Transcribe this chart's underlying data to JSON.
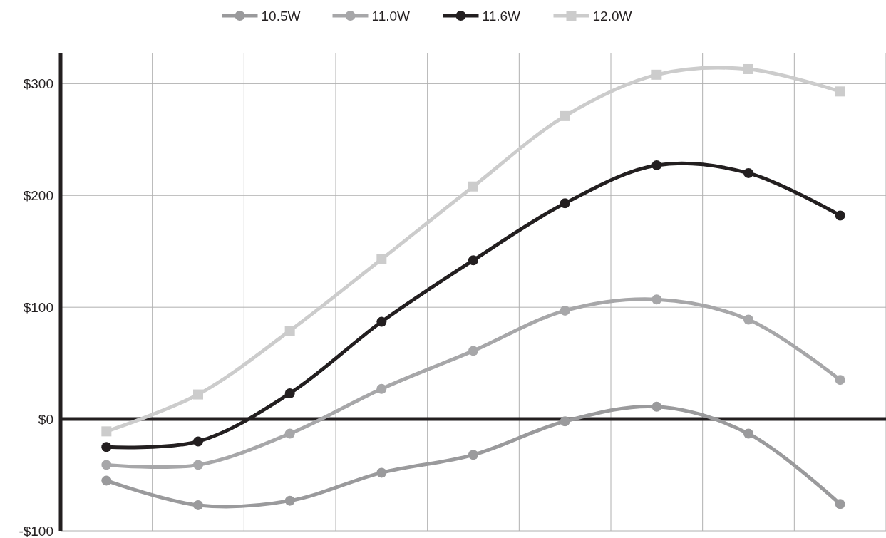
{
  "chart_data": {
    "type": "line",
    "categories": [
      null,
      null,
      null,
      null,
      null,
      null,
      null,
      null,
      null
    ],
    "series": [
      {
        "name": "10.5W",
        "color": "#9a9a9c",
        "marker": "circle",
        "values": [
          -55,
          -77,
          -73,
          -48,
          -32,
          -2,
          11,
          -13,
          -76
        ]
      },
      {
        "name": "11.0W",
        "color": "#a7a7a9",
        "marker": "circle",
        "values": [
          -41,
          -41,
          -13,
          27,
          61,
          97,
          107,
          89,
          35
        ]
      },
      {
        "name": "11.6W",
        "color": "#231f20",
        "marker": "circle",
        "values": [
          -25,
          -20,
          23,
          87,
          142,
          193,
          227,
          220,
          182
        ]
      },
      {
        "name": "12.0W",
        "color": "#cccccc",
        "marker": "square",
        "values": [
          -11,
          22,
          79,
          143,
          208,
          271,
          308,
          313,
          293
        ]
      }
    ],
    "ylim": [
      -100,
      327
    ],
    "yticks": [
      {
        "value": -100,
        "label": "-$100"
      },
      {
        "value": 0,
        "label": "$0"
      },
      {
        "value": 100,
        "label": "$100"
      },
      {
        "value": 200,
        "label": "$200"
      },
      {
        "value": 300,
        "label": "$300"
      }
    ],
    "ref_lines": [
      {
        "axis": "y",
        "value": 0,
        "color": "#231f20"
      }
    ],
    "grid": true,
    "legend": "top",
    "line_style": "solid"
  }
}
